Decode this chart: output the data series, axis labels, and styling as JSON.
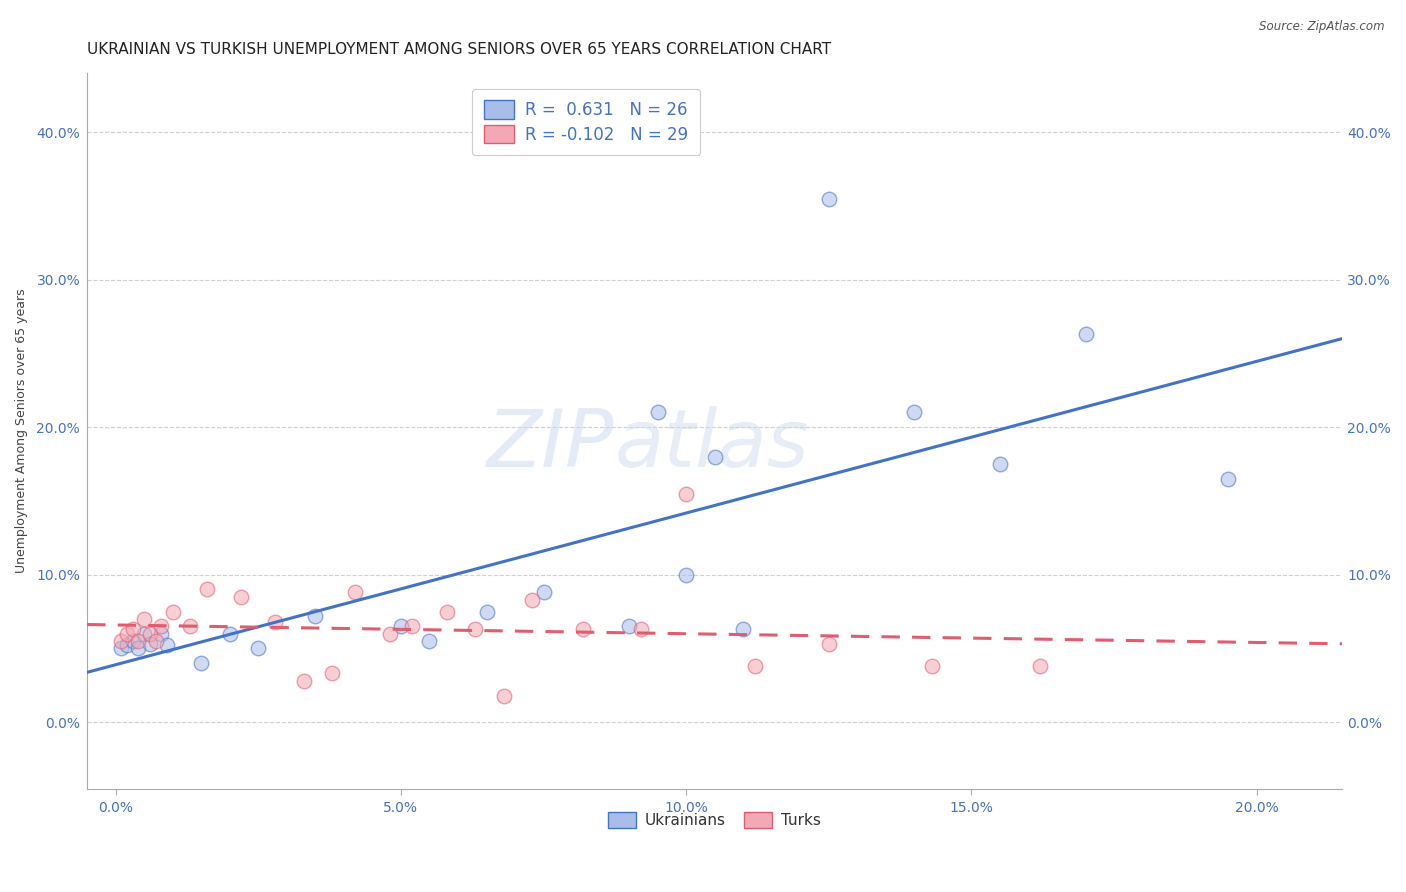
{
  "title": "UKRAINIAN VS TURKISH UNEMPLOYMENT AMONG SENIORS OVER 65 YEARS CORRELATION CHART",
  "source": "Source: ZipAtlas.com",
  "xlabel_vals": [
    0.0,
    0.05,
    0.1,
    0.15,
    0.2
  ],
  "xlabel_ticks": [
    "0.0%",
    "5.0%",
    "10.0%",
    "15.0%",
    "20.0%"
  ],
  "ylabel_vals": [
    0.0,
    0.1,
    0.2,
    0.3,
    0.4
  ],
  "ylabel_ticks": [
    "0.0%",
    "10.0%",
    "20.0%",
    "30.0%",
    "40.0%"
  ],
  "xlim": [
    -0.005,
    0.215
  ],
  "ylim": [
    -0.045,
    0.44
  ],
  "watermark1": "ZIP",
  "watermark2": "atlas",
  "legend_blue_label": "R =  0.631   N = 26",
  "legend_pink_label": "R = -0.102   N = 29",
  "legend_bottom_ukrainians": "Ukrainians",
  "legend_bottom_turks": "Turks",
  "blue_scatter_x": [
    0.001,
    0.002,
    0.003,
    0.004,
    0.005,
    0.006,
    0.008,
    0.009,
    0.015,
    0.02,
    0.025,
    0.035,
    0.05,
    0.055,
    0.065,
    0.075,
    0.09,
    0.095,
    0.1,
    0.105,
    0.11,
    0.125,
    0.14,
    0.155,
    0.17,
    0.195
  ],
  "blue_scatter_y": [
    0.05,
    0.052,
    0.055,
    0.05,
    0.06,
    0.053,
    0.06,
    0.052,
    0.04,
    0.06,
    0.05,
    0.072,
    0.065,
    0.055,
    0.075,
    0.088,
    0.065,
    0.21,
    0.1,
    0.18,
    0.063,
    0.355,
    0.21,
    0.175,
    0.263,
    0.165
  ],
  "pink_scatter_x": [
    0.001,
    0.002,
    0.003,
    0.004,
    0.005,
    0.006,
    0.007,
    0.008,
    0.01,
    0.013,
    0.016,
    0.022,
    0.028,
    0.033,
    0.038,
    0.042,
    0.048,
    0.052,
    0.058,
    0.063,
    0.068,
    0.073,
    0.082,
    0.092,
    0.1,
    0.112,
    0.125,
    0.143,
    0.162
  ],
  "pink_scatter_y": [
    0.055,
    0.06,
    0.063,
    0.055,
    0.07,
    0.06,
    0.055,
    0.065,
    0.075,
    0.065,
    0.09,
    0.085,
    0.068,
    0.028,
    0.033,
    0.088,
    0.06,
    0.065,
    0.075,
    0.063,
    0.018,
    0.083,
    0.063,
    0.063,
    0.155,
    0.038,
    0.053,
    0.038,
    0.038
  ],
  "blue_line_color": "#4472C4",
  "pink_line_color": "#E05C6E",
  "blue_scatter_facecolor": "#A8BDE8",
  "pink_scatter_facecolor": "#F4A7B4",
  "background_color": "#FFFFFF",
  "grid_color": "#CCCCCC",
  "title_fontsize": 11,
  "ylabel_fontsize": 9,
  "tick_fontsize": 10,
  "scatter_size": 110,
  "scatter_alpha": 0.55,
  "line_width": 2.2
}
